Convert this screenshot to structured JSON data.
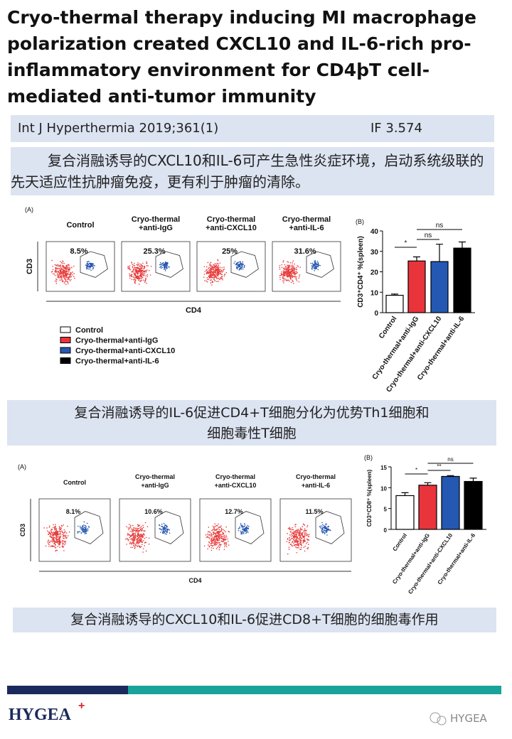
{
  "header": {
    "title": "Cryo-thermal therapy inducing MI macrophage polarization created CXCL10 and IL-6-rich pro-inflammatory environment for CD4þT cell-mediated anti-tumor immunity",
    "citation": "Int J Hyperthermia 2019;361(1)",
    "impact_factor": "IF 3.574"
  },
  "summary_1": "复合消融诱导的CXCL10和IL-6可产生急性炎症环境，启动系统级联的先天适应性抗肿瘤免疫，更有利于肿瘤的清除。",
  "figure_1": {
    "panel_a_label": "(A)",
    "x_axis_label": "CD4",
    "y_axis_label": "CD3",
    "flow_plots": [
      {
        "title": [
          "Control"
        ],
        "percent": "8.5%"
      },
      {
        "title": [
          "Cryo-thermal",
          "+anti-IgG"
        ],
        "percent": "25.3%"
      },
      {
        "title": [
          "Cryo-thermal",
          "+anti-CXCL10"
        ],
        "percent": "25%"
      },
      {
        "title": [
          "Cryo-thermal",
          "+anti-IL-6"
        ],
        "percent": "31.6%"
      }
    ],
    "panel_b_label": "(B)",
    "bar_chart": {
      "type": "bar",
      "y_axis_label": "CD3⁺CD4⁺ %(spleen)",
      "categories": [
        "Control",
        "Cryo-thermal+anti-IgG",
        "Cryo-thermal+anti-CXCL10",
        "Cryo-thermal+anti-IL-6"
      ],
      "values": [
        8.5,
        25.3,
        25,
        31.6
      ],
      "errors": [
        0.6,
        2,
        8.5,
        3
      ],
      "colors": [
        "#ffffff",
        "#e8343a",
        "#2458b3",
        "#000000"
      ],
      "ylim": [
        0,
        40
      ],
      "yticks": [
        0,
        10,
        20,
        30,
        40
      ],
      "significance": [
        "*",
        "ns",
        "ns"
      ]
    }
  },
  "summary_2": [
    "复合消融诱导的IL-6促进CD4+T细胞分化为优势Th1细胞和",
    "细胞毒性T细胞"
  ],
  "figure_2": {
    "panel_a_label": "(A)",
    "x_axis_label": "CD4",
    "y_axis_label": "CD3",
    "flow_plots": [
      {
        "title": [
          "Control"
        ],
        "percent": "8.1%"
      },
      {
        "title": [
          "Cryo-thermal",
          "+anti-IgG"
        ],
        "percent": "10.6%"
      },
      {
        "title": [
          "Cryo-thermal",
          "+anti-CXCL10"
        ],
        "percent": "12.7%"
      },
      {
        "title": [
          "Cryo-thermal",
          "+anti-IL-6"
        ],
        "percent": "11.5%"
      }
    ],
    "panel_b_label": "(B)",
    "bar_chart": {
      "type": "bar",
      "y_axis_label": "CD3⁺CD8⁺ %(spleen)",
      "categories": [
        "Control",
        "Cryo-thermal+anti-IgG",
        "Cryo-thermal+anti-CXCL10",
        "Cryo-thermal+anti-IL-6"
      ],
      "values": [
        8.1,
        10.6,
        12.7,
        11.5
      ],
      "errors": [
        0.7,
        0.6,
        0.2,
        0.8
      ],
      "colors": [
        "#ffffff",
        "#e8343a",
        "#2458b3",
        "#000000"
      ],
      "ylim": [
        0,
        15
      ],
      "yticks": [
        0,
        5,
        10,
        15
      ],
      "significance": [
        "*",
        "**",
        "ns"
      ]
    }
  },
  "summary_3": "复合消融诱导的CXCL10和IL-6促进CD8+T细胞的细胞毒作用",
  "footer": {
    "logo": "HYGEA",
    "watermark": "HYGEA"
  }
}
